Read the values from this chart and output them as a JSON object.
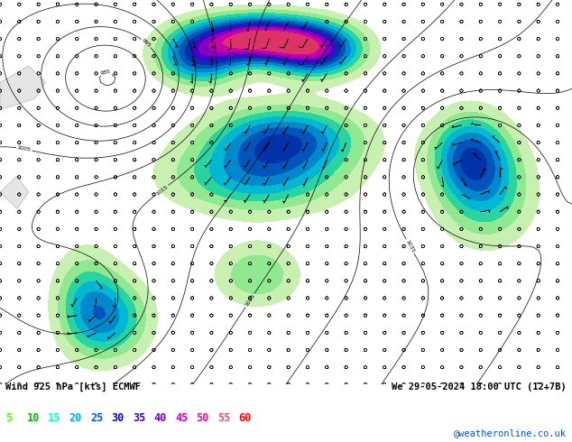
{
  "title_left": "Wind 925 hPa [kts] ECMWF",
  "title_right": "We 29-05-2024 18:00 UTC (12+7B)",
  "watermark": "@weatheronline.co.uk",
  "legend_values": [
    "5",
    "10",
    "15",
    "20",
    "25",
    "30",
    "35",
    "40",
    "45",
    "50",
    "55",
    "60"
  ],
  "legend_colors": [
    "#55ff00",
    "#00dd00",
    "#00ffcc",
    "#00ccff",
    "#0088ff",
    "#0044ff",
    "#0000dd",
    "#6600cc",
    "#cc00cc",
    "#ff00aa",
    "#ff4466",
    "#ff0000"
  ],
  "bg_color": "#ffffff",
  "map_bg": "#c8e6b0",
  "fig_width": 6.34,
  "fig_height": 4.9,
  "dpi": 100
}
